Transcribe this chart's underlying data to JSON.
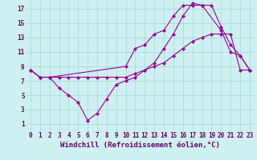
{
  "bg_color": "#cff0f0",
  "line_color": "#990099",
  "xlabel": "Windchill (Refroidissement éolien,°C)",
  "xlabel_color": "#660066",
  "xlabel_fontsize": 6.5,
  "tick_color": "#660066",
  "tick_fontsize": 5.5,
  "grid_color": "#a0d8d8",
  "xlim": [
    -0.5,
    23.5
  ],
  "ylim": [
    0,
    18
  ],
  "yticks": [
    1,
    3,
    5,
    7,
    9,
    11,
    13,
    15,
    17
  ],
  "xticks": [
    0,
    1,
    2,
    3,
    4,
    5,
    6,
    7,
    8,
    9,
    10,
    11,
    12,
    13,
    14,
    15,
    16,
    17,
    18,
    19,
    20,
    21,
    22,
    23
  ],
  "line1_x": [
    0,
    1,
    2,
    10,
    11,
    12,
    13,
    14,
    15,
    16,
    17,
    18,
    20,
    21,
    22,
    23
  ],
  "line1_y": [
    8.5,
    7.5,
    7.5,
    9.0,
    11.5,
    12.0,
    13.5,
    14.0,
    16.0,
    17.5,
    17.5,
    17.5,
    14.0,
    11.0,
    10.5,
    8.5
  ],
  "line2_x": [
    0,
    1,
    2,
    3,
    4,
    5,
    6,
    7,
    8,
    9,
    10,
    11,
    12,
    13,
    14,
    15,
    16,
    17,
    18,
    19,
    20,
    21,
    22,
    23
  ],
  "line2_y": [
    8.5,
    7.5,
    7.5,
    7.5,
    7.5,
    7.5,
    7.5,
    7.5,
    7.5,
    7.5,
    7.5,
    8.0,
    8.5,
    9.0,
    9.5,
    10.5,
    11.5,
    12.5,
    13.0,
    13.5,
    13.5,
    13.5,
    8.5,
    8.5
  ],
  "line3_x": [
    0,
    1,
    2,
    3,
    4,
    5,
    6,
    7,
    8,
    9,
    10,
    11,
    12,
    13,
    14,
    15,
    16,
    17,
    18,
    19,
    20,
    21,
    22,
    23
  ],
  "line3_y": [
    8.5,
    7.5,
    7.5,
    6.0,
    5.0,
    4.0,
    1.5,
    2.5,
    4.5,
    6.5,
    7.0,
    7.5,
    8.5,
    9.5,
    11.5,
    13.5,
    16.0,
    17.8,
    17.5,
    17.5,
    14.5,
    12.0,
    10.5,
    8.5
  ]
}
